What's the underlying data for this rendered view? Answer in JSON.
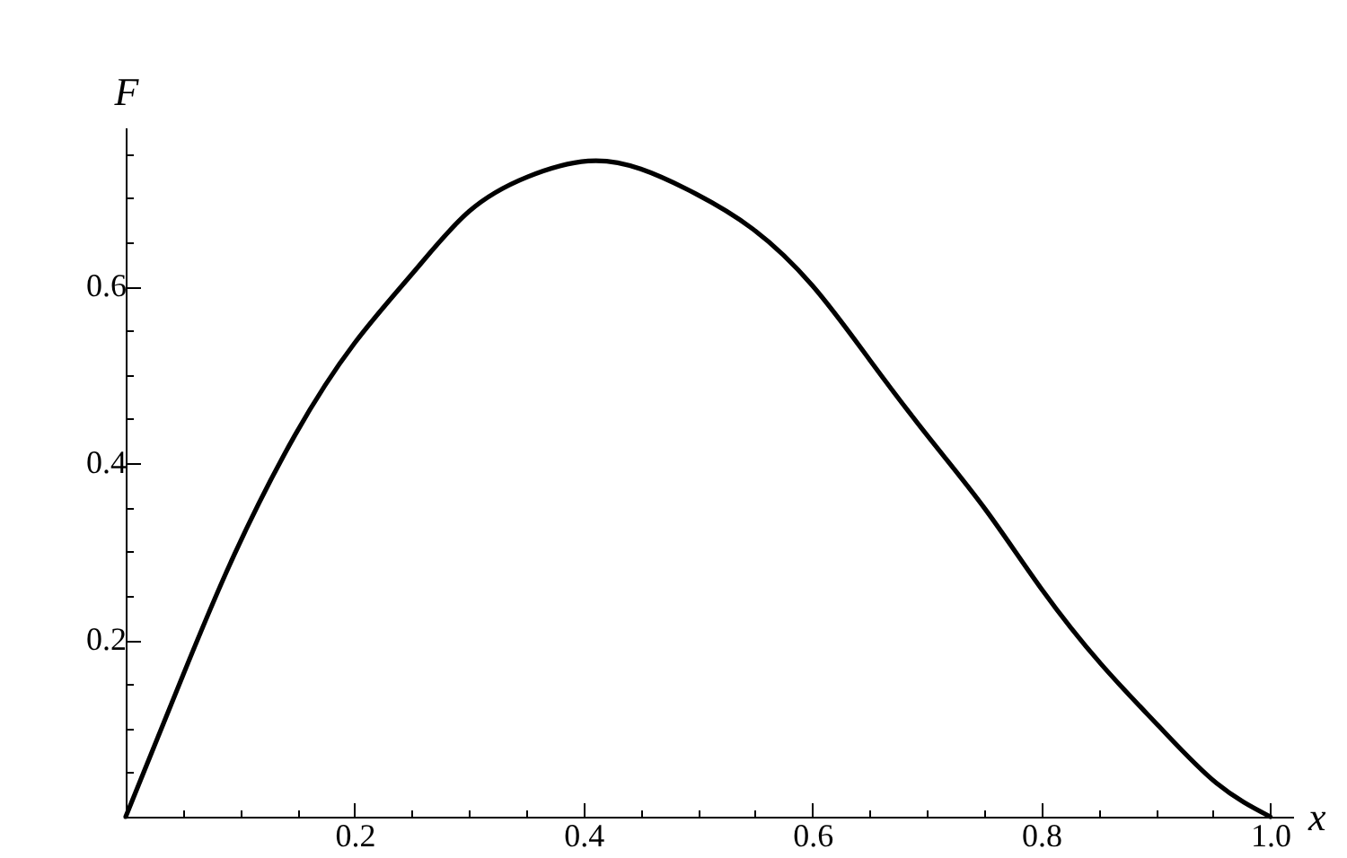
{
  "chart_data": {
    "type": "line",
    "xlabel": "x",
    "ylabel": "F",
    "x": [
      0,
      0.05,
      0.095,
      0.148,
      0.2,
      0.252,
      0.3,
      0.351,
      0.404,
      0.45,
      0.498,
      0.548,
      0.6,
      0.65,
      0.7,
      0.751,
      0.8,
      0.852,
      0.903,
      0.953,
      1.0
    ],
    "series": [
      {
        "color": "#000000",
        "values": [
          0,
          0.16,
          0.297,
          0.432,
          0.536,
          0.617,
          0.685,
          0.724,
          0.742,
          0.733,
          0.705,
          0.665,
          0.601,
          0.517,
          0.432,
          0.348,
          0.258,
          0.173,
          0.102,
          0.038,
          0
        ]
      }
    ],
    "xlim": [
      0,
      1.02
    ],
    "ylim": [
      0,
      0.78
    ],
    "xticks": [
      {
        "value": 0.05,
        "label": null
      },
      {
        "value": 0.1,
        "label": null
      },
      {
        "value": 0.15,
        "label": null
      },
      0.2,
      {
        "value": 0.25,
        "label": null
      },
      {
        "value": 0.3,
        "label": null
      },
      {
        "value": 0.35,
        "label": null
      },
      0.4,
      {
        "value": 0.45,
        "label": null
      },
      {
        "value": 0.5,
        "label": null
      },
      {
        "value": 0.55,
        "label": null
      },
      0.6,
      {
        "value": 0.65,
        "label": null
      },
      {
        "value": 0.7,
        "label": null
      },
      {
        "value": 0.75,
        "label": null
      },
      0.8,
      {
        "value": 0.85,
        "label": null
      },
      {
        "value": 0.9,
        "label": null
      },
      {
        "value": 0.95,
        "label": null
      },
      {
        "value": 1,
        "label": "1.0"
      }
    ],
    "yticks": [
      {
        "value": 0.05,
        "label": null
      },
      {
        "value": 0.1,
        "label": null
      },
      {
        "value": 0.15,
        "label": null
      },
      0.2,
      {
        "value": 0.25,
        "label": null
      },
      {
        "value": 0.3,
        "label": null
      },
      {
        "value": 0.35,
        "label": null
      },
      0.4,
      {
        "value": 0.45,
        "label": null
      },
      {
        "value": 0.5,
        "label": null
      },
      {
        "value": 0.55,
        "label": null
      },
      0.6,
      {
        "value": 0.65,
        "label": null
      },
      {
        "value": 0.7,
        "label": null
      },
      {
        "value": 0.75,
        "label": null
      }
    ],
    "grid": false,
    "marker": "none",
    "line_style": "solid"
  }
}
